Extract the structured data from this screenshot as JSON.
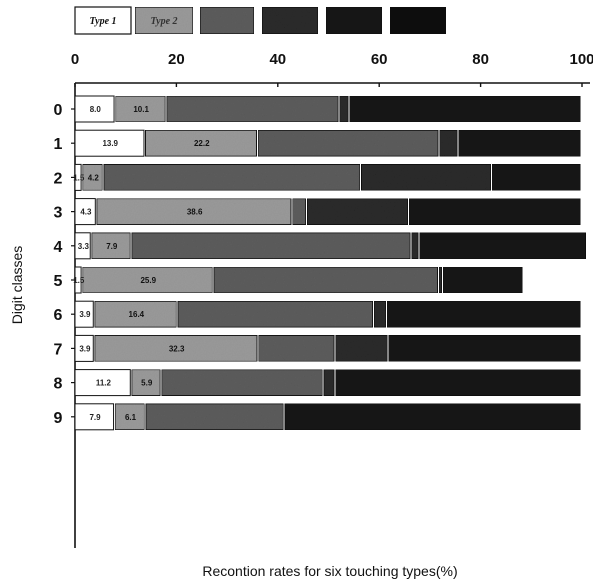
{
  "chart_data": {
    "type": "bar",
    "orientation": "horizontal",
    "stacked": true,
    "xlabel": "Recontion rates for six touching types(%)",
    "ylabel": "Digit classes",
    "xlim": [
      0,
      100
    ],
    "x_ticks": [
      "0",
      "20",
      "40",
      "60",
      "80",
      "100"
    ],
    "categories": [
      "0",
      "1",
      "2",
      "3",
      "4",
      "5",
      "6",
      "7",
      "8",
      "9"
    ],
    "legend": {
      "position": "top",
      "entries": [
        "Type 1",
        "Type 2",
        "",
        "",
        "",
        ""
      ]
    },
    "series": [
      {
        "name": "Type 1",
        "color": "#ffffff",
        "values": [
          8.0,
          13.9,
          1.5,
          4.3,
          3.3,
          1.5,
          3.9,
          3.9,
          11.2,
          7.9
        ]
      },
      {
        "name": "Type 2",
        "color": "#9a9a9a",
        "values": [
          10.1,
          22.2,
          4.2,
          38.6,
          7.9,
          25.9,
          16.4,
          32.3,
          5.9,
          6.1
        ]
      },
      {
        "color": "#5c5c5c",
        "values": [
          34.1,
          35.8,
          50.8,
          2.9,
          55.2,
          44.4,
          38.7,
          15.2,
          32.0,
          27.4
        ]
      },
      {
        "color": "#2a2a2a",
        "values": [
          2.0,
          3.8,
          25.8,
          20.1,
          1.6,
          0.8,
          2.6,
          10.5,
          2.3,
          0.0
        ]
      },
      {
        "color": "#181818",
        "values": [
          45.8,
          24.3,
          17.7,
          34.1,
          33.0,
          15.9,
          38.4,
          38.1,
          48.6,
          58.6
        ]
      }
    ],
    "data_labels": [
      [
        "8.0",
        "10.1"
      ],
      [
        "13.9",
        "22.2"
      ],
      [
        "1.5",
        "4.2"
      ],
      [
        "4.3",
        "38.6"
      ],
      [
        "3.3",
        "7.9"
      ],
      [
        "1.5",
        "25.9"
      ],
      [
        "3.9",
        "16.4"
      ],
      [
        "3.9",
        "32.3"
      ],
      [
        "11.2",
        "5.9"
      ],
      [
        "7.9",
        "6.1"
      ]
    ],
    "legend_colors": [
      "#ffffff",
      "#9a9a9a",
      "#5c5c5c",
      "#2a2a2a",
      "#181818",
      "#0e0e0e"
    ],
    "grid": false
  }
}
